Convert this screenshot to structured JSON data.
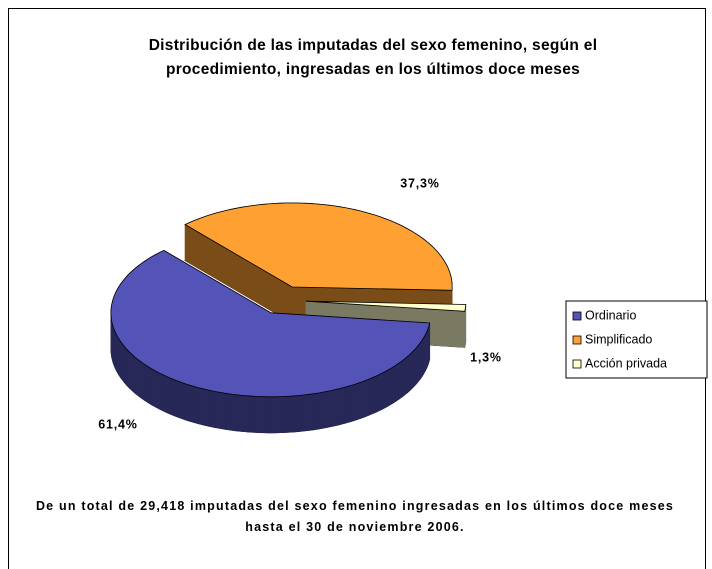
{
  "chart_data": {
    "type": "pie",
    "title": "Distribución de las imputadas del sexo femenino, según el procedimiento, ingresadas en los últimos doce meses",
    "categories": [
      "Ordinario",
      "Simplificado",
      "Acción privada"
    ],
    "values": [
      61.4,
      37.3,
      1.3
    ],
    "value_labels": [
      "61,4%",
      "37,3%",
      "1,3%"
    ],
    "colors": [
      "#5454b8",
      "#ffa033",
      "#ffffcc"
    ],
    "legend": "right",
    "note": "De un total de 29,418 imputadas del sexo femenino ingresadas en los últimos doce meses hasta el 30 de noviembre 2006."
  }
}
